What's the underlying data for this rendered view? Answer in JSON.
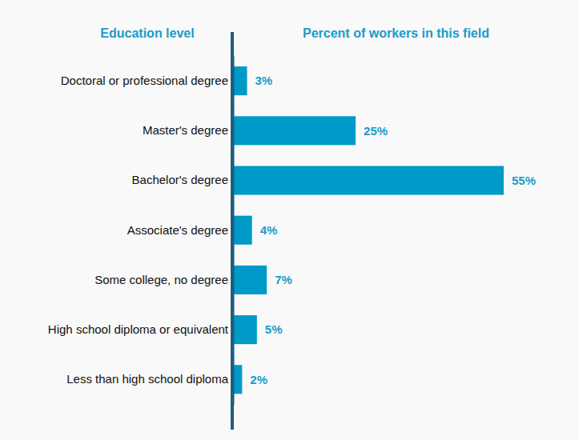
{
  "chart_data": {
    "type": "bar",
    "orientation": "horizontal",
    "y_label": "Education level",
    "x_label": "Percent of workers in this field",
    "categories": [
      "Doctoral or professional degree",
      "Master's degree",
      "Bachelor's degree",
      "Associate's degree",
      "Some college, no degree",
      "High school diploma or equivalent",
      "Less than high school diploma"
    ],
    "values": [
      3,
      25,
      55,
      4,
      7,
      5,
      2
    ],
    "value_labels": [
      "3%",
      "25%",
      "55%",
      "4%",
      "7%",
      "5%",
      "2%"
    ],
    "color": "#009ac9",
    "data_labels": true,
    "tick_labels": "y",
    "grid": false
  }
}
